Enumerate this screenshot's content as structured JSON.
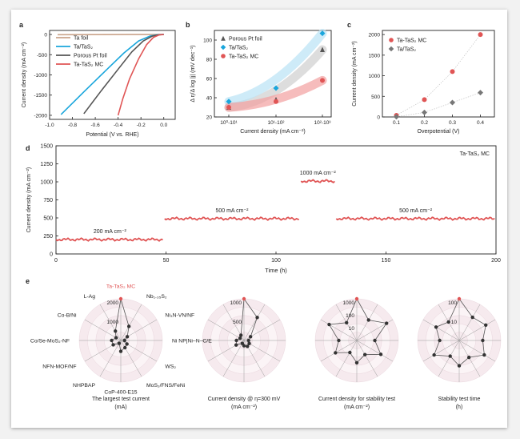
{
  "panels": {
    "a": {
      "label": "a"
    },
    "b": {
      "label": "b"
    },
    "c": {
      "label": "c"
    },
    "d": {
      "label": "d"
    },
    "e": {
      "label": "e"
    }
  },
  "colors": {
    "red": "#e05555",
    "blue": "#1aa6dc",
    "gray": "#666666",
    "tan": "#c9a38a",
    "light_red": "#f2a0a0",
    "light_blue": "#b9e3f5",
    "light_gray": "#cfcfcf"
  },
  "chart_data": [
    {
      "id": "a",
      "type": "line",
      "xlabel": "Potential (V vs. RHE)",
      "ylabel": "Current density (mA cm⁻²)",
      "xlim": [
        -1.0,
        0.1
      ],
      "ylim": [
        -2100,
        100
      ],
      "xticks": [
        -1.0,
        -0.8,
        -0.6,
        -0.4,
        -0.2,
        0.0
      ],
      "yticks": [
        0,
        -500,
        -1000,
        -1500,
        -2000
      ],
      "legend_position": "top-left",
      "series": [
        {
          "name": "Ta foil",
          "color": "#c9a38a",
          "points": [
            [
              -0.93,
              -5
            ],
            [
              -0.6,
              -3
            ],
            [
              -0.3,
              -1
            ],
            [
              0.0,
              0
            ]
          ]
        },
        {
          "name": "Ta/TaS₂",
          "color": "#1aa6dc",
          "points": [
            [
              -0.9,
              -1980
            ],
            [
              -0.7,
              -1420
            ],
            [
              -0.5,
              -870
            ],
            [
              -0.35,
              -460
            ],
            [
              -0.22,
              -160
            ],
            [
              -0.12,
              -40
            ],
            [
              -0.05,
              -5
            ],
            [
              0.0,
              0
            ]
          ]
        },
        {
          "name": "Porous Pt foil",
          "color": "#555555",
          "points": [
            [
              -0.7,
              -1960
            ],
            [
              -0.55,
              -1400
            ],
            [
              -0.4,
              -860
            ],
            [
              -0.28,
              -430
            ],
            [
              -0.18,
              -160
            ],
            [
              -0.1,
              -40
            ],
            [
              -0.04,
              -5
            ],
            [
              0.0,
              0
            ]
          ]
        },
        {
          "name": "Ta-TaS₂ MC",
          "color": "#e05555",
          "points": [
            [
              -0.4,
              -2000
            ],
            [
              -0.36,
              -1600
            ],
            [
              -0.3,
              -1100
            ],
            [
              -0.22,
              -600
            ],
            [
              -0.15,
              -250
            ],
            [
              -0.09,
              -70
            ],
            [
              -0.04,
              -10
            ],
            [
              0.0,
              0
            ]
          ]
        }
      ]
    },
    {
      "id": "b",
      "type": "scatter",
      "xlabel": "Current density (mA cm⁻²)",
      "ylabel": "Δ η/Δ log |j| (mV dec⁻¹)",
      "xcategories": [
        "10⁰-10¹",
        "10¹-10²",
        "10²-10³"
      ],
      "ylim": [
        20,
        110
      ],
      "yticks": [
        20,
        40,
        60,
        80,
        100
      ],
      "legend_position": "top-left",
      "series": [
        {
          "name": "Porous Pt foil",
          "color": "#555555",
          "marker": "triangle",
          "values": [
            30,
            38,
            90
          ]
        },
        {
          "name": "Ta/TaS₂",
          "color": "#1aa6dc",
          "marker": "diamond",
          "values": [
            36,
            50,
            107
          ]
        },
        {
          "name": "Ta-TaS₂ MC",
          "color": "#e05555",
          "marker": "circle",
          "values": [
            30,
            36,
            58
          ]
        }
      ]
    },
    {
      "id": "c",
      "type": "scatter",
      "xlabel": "Overpotential (V)",
      "ylabel": "Current density (mA cm⁻²)",
      "x": [
        0.1,
        0.2,
        0.3,
        0.4
      ],
      "xlim": [
        0.05,
        0.45
      ],
      "ylim": [
        0,
        2100
      ],
      "yticks": [
        0,
        500,
        1000,
        1500,
        2000
      ],
      "legend_position": "top-left",
      "series": [
        {
          "name": "Ta-TaS₂ MC",
          "color": "#e05555",
          "marker": "circle",
          "values": [
            40,
            420,
            1100,
            2000
          ]
        },
        {
          "name": "Ta/TaS₂",
          "color": "#777777",
          "marker": "diamond",
          "values": [
            5,
            110,
            350,
            590
          ]
        }
      ]
    },
    {
      "id": "d",
      "type": "line",
      "xlabel": "Time (h)",
      "ylabel": "Current density (mA cm⁻²)",
      "xlim": [
        0,
        200
      ],
      "ylim": [
        0,
        1500
      ],
      "xticks": [
        0,
        50,
        100,
        150,
        200
      ],
      "yticks": [
        0,
        250,
        500,
        750,
        1000,
        1250,
        1500
      ],
      "legend": "Ta-TaS₂ MC",
      "series": [
        {
          "name": "Ta-TaS₂ MC",
          "color": "#e05555",
          "segments": [
            {
              "x": [
                0,
                49
              ],
              "value": 200,
              "label": "200 mA cm⁻²"
            },
            {
              "x": [
                49,
                111
              ],
              "value": 490,
              "label": "500 mA cm⁻²"
            },
            {
              "x": [
                111,
                127
              ],
              "value": 1010,
              "label": "1000 mA cm⁻²"
            },
            {
              "x": [
                127,
                200
              ],
              "value": 490,
              "label": "500 mA cm⁻²"
            }
          ]
        }
      ]
    },
    {
      "id": "e",
      "type": "radar",
      "materials": [
        "Ta-TaS₂ MC",
        "Nb₁.₃₅S₂",
        "Ni₃N-VN/NF",
        "Ni NP|Ni–N–C/E",
        "WS₂",
        "MoS₂/FNS/FeNi",
        "CoP-400-E15",
        "NHPBAP",
        "NFN-MOF/NF",
        "Co/Se-MoS₂-NF",
        "Co-B/Ni",
        "L-Ag"
      ],
      "charts": [
        {
          "title": "The largest test current",
          "unit": "(mA)",
          "scale_labels": [
            "1000",
            "2000"
          ],
          "values": [
            2000,
            780,
            360,
            180,
            340,
            400,
            520,
            150,
            420,
            440,
            260,
            520
          ]
        },
        {
          "title": "Current density @ η=300 mV",
          "unit": "(mA cm⁻²)",
          "scale_labels": [
            "500",
            "1000"
          ],
          "values": [
            1100,
            700,
            200,
            120,
            160,
            180,
            140,
            90,
            240,
            200,
            120,
            160
          ]
        },
        {
          "title": "Current density for stability test",
          "unit": "(mA cm⁻²)",
          "scale_labels": [
            "10",
            "100",
            "1000"
          ],
          "values": [
            1000,
            50,
            300,
            20,
            100,
            15,
            40,
            10,
            60,
            20,
            200,
            30
          ]
        },
        {
          "title": "Stability test time",
          "unit": "(h)",
          "scale_labels": [
            "10",
            "100"
          ],
          "values": [
            200,
            30,
            50,
            20,
            40,
            12,
            25,
            10,
            40,
            12,
            30,
            15
          ]
        }
      ]
    }
  ]
}
